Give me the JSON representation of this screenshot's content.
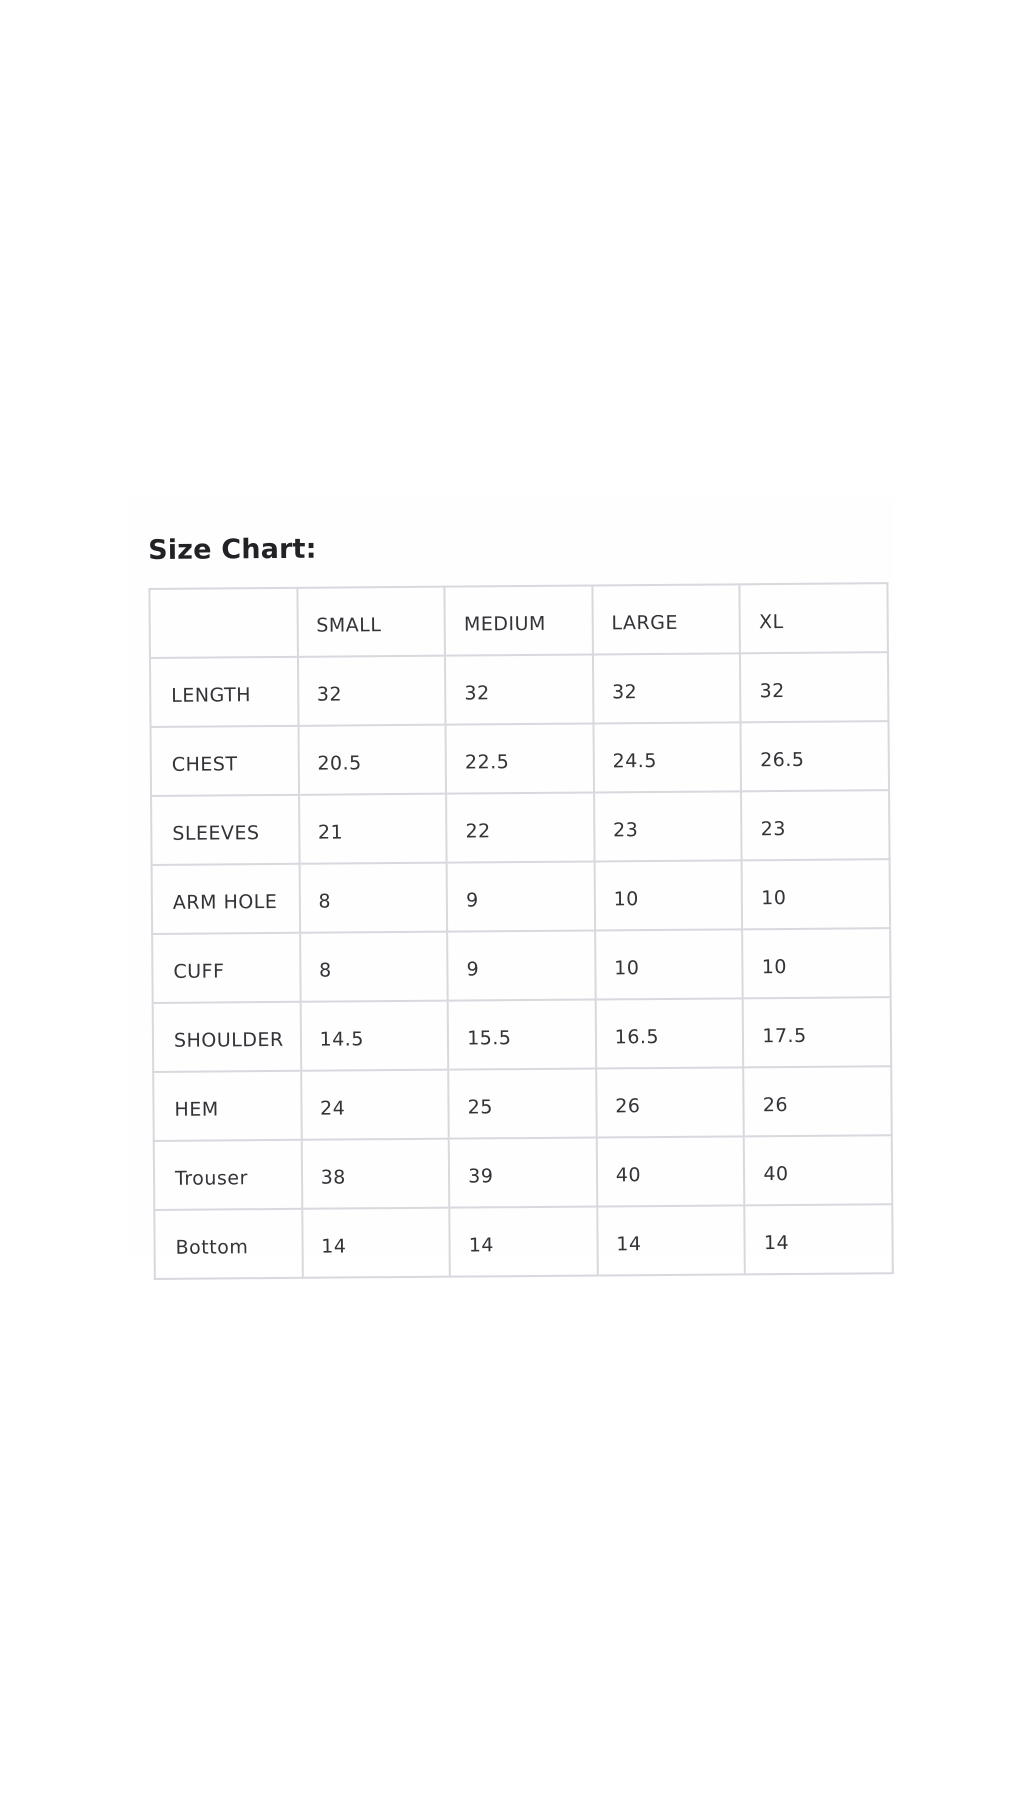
{
  "title": "Size Chart:",
  "columns": [
    "",
    "SMALL",
    "MEDIUM",
    "LARGE",
    "XL"
  ],
  "rows": [
    {
      "label": "LENGTH",
      "values": [
        "32",
        "32",
        "32",
        "32"
      ]
    },
    {
      "label": "CHEST",
      "values": [
        "20.5",
        "22.5",
        "24.5",
        "26.5"
      ]
    },
    {
      "label": "SLEEVES",
      "values": [
        "21",
        "22",
        "23",
        "23"
      ]
    },
    {
      "label": "ARM HOLE",
      "values": [
        "8",
        "9",
        "10",
        "10"
      ]
    },
    {
      "label": "CUFF",
      "values": [
        "8",
        "9",
        "10",
        "10"
      ]
    },
    {
      "label": "SHOULDER",
      "values": [
        "14.5",
        "15.5",
        "16.5",
        "17.5"
      ]
    },
    {
      "label": "HEM",
      "values": [
        "24",
        "25",
        "26",
        "26"
      ]
    },
    {
      "label": "Trouser",
      "values": [
        "38",
        "39",
        "40",
        "40"
      ]
    },
    {
      "label": "Bottom",
      "values": [
        "14",
        "14",
        "14",
        "14"
      ]
    }
  ]
}
